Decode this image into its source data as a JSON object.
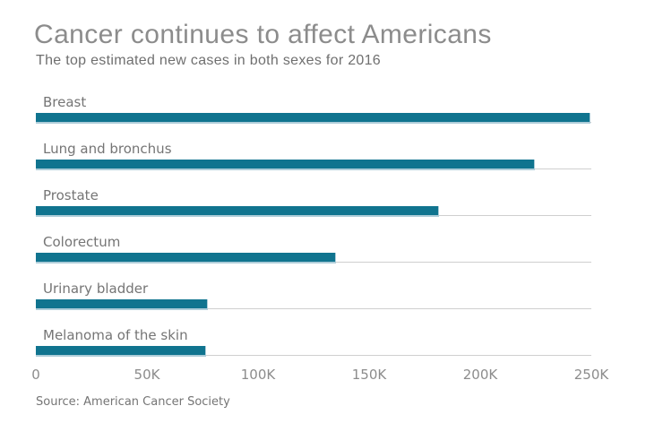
{
  "chart_data": {
    "type": "bar",
    "orientation": "horizontal",
    "title": "Cancer continues to affect Americans",
    "subtitle": "The top estimated new cases in both sexes for 2016",
    "source": "Source: American Cancer Society",
    "categories": [
      "Breast",
      "Lung and bronchus",
      "Prostate",
      "Colorectum",
      "Urinary bladder",
      "Melanoma of the skin"
    ],
    "values": [
      249260,
      224390,
      180890,
      134490,
      76960,
      76380
    ],
    "xlabel": "",
    "ylabel": "",
    "xlim": [
      0,
      250000
    ],
    "xticks": [
      {
        "value": 0,
        "label": "0"
      },
      {
        "value": 50000,
        "label": "50K"
      },
      {
        "value": 100000,
        "label": "100K"
      },
      {
        "value": 150000,
        "label": "150K"
      },
      {
        "value": 200000,
        "label": "200K"
      },
      {
        "value": 250000,
        "label": "250K"
      }
    ],
    "grid": "row-baselines-only",
    "legend": "none",
    "colors": {
      "bar": "#10748f",
      "bar_edge": "#aecdd9",
      "baseline": "#cfcfcf",
      "title_text": "#8c8c8c",
      "subtitle_text": "#6f6f6f",
      "label_text": "#757575",
      "tick_text": "#8c8c8c",
      "source_text": "#757575"
    }
  }
}
